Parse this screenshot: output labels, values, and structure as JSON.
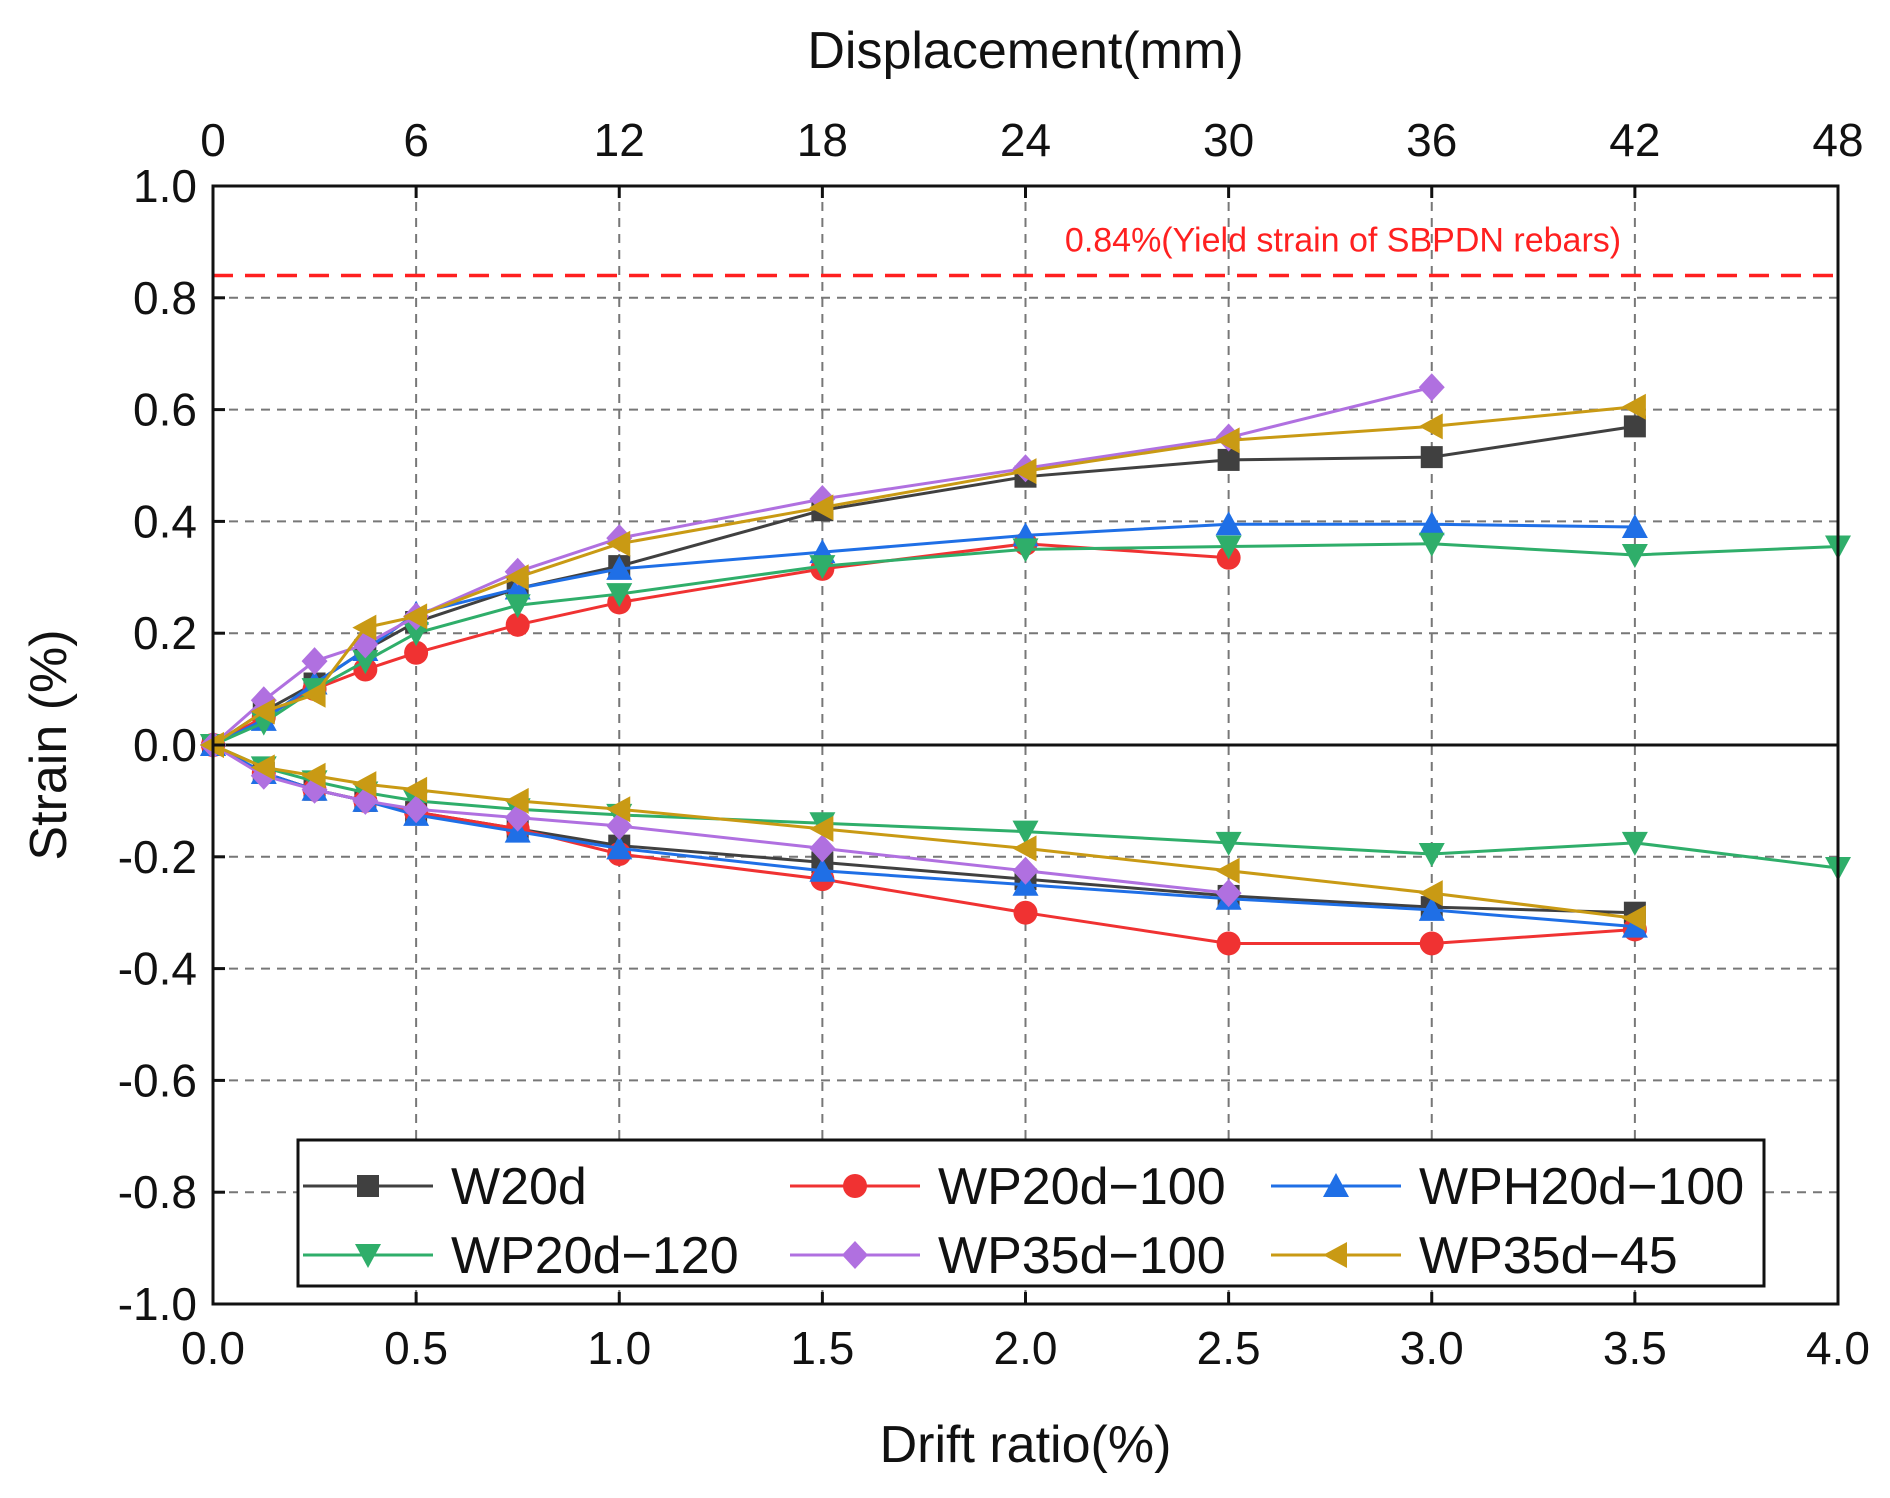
{
  "chart_data": {
    "type": "line",
    "xlabel": "Drift ratio(%)",
    "ylabel": "Strain (%)",
    "x2label": "Displacement(mm)",
    "xlim": [
      0,
      4.0
    ],
    "ylim": [
      -1.0,
      1.0
    ],
    "x2lim": [
      0,
      48
    ],
    "xticks": [
      "0.0",
      "0.5",
      "1.0",
      "1.5",
      "2.0",
      "2.5",
      "3.0",
      "3.5",
      "4.0"
    ],
    "yticks": [
      "1.0",
      "0.8",
      "0.6",
      "0.4",
      "0.2",
      "0.0",
      "-0.2",
      "-0.4",
      "-0.6",
      "-0.8",
      "-1.0"
    ],
    "x2ticks": [
      "0",
      "6",
      "12",
      "18",
      "24",
      "30",
      "36",
      "42",
      "48"
    ],
    "grid": true,
    "legend_position": "bottom",
    "reference_line": {
      "y": 0.84,
      "label": "0.84%(Yield strain of SBPDN rebars)",
      "color": "#ff2020"
    },
    "series": [
      {
        "name": "W20d",
        "color": "#404040",
        "marker": "square",
        "positive": [
          [
            0,
            0
          ],
          [
            0.125,
            0.06
          ],
          [
            0.25,
            0.11
          ],
          [
            0.375,
            0.17
          ],
          [
            0.5,
            0.22
          ],
          [
            0.75,
            0.28
          ],
          [
            1.0,
            0.32
          ],
          [
            1.5,
            0.42
          ],
          [
            2.0,
            0.48
          ],
          [
            2.5,
            0.51
          ],
          [
            3.0,
            0.515
          ],
          [
            3.5,
            0.57
          ]
        ],
        "negative": [
          [
            0,
            0
          ],
          [
            0.125,
            -0.05
          ],
          [
            0.25,
            -0.08
          ],
          [
            0.375,
            -0.1
          ],
          [
            0.5,
            -0.12
          ],
          [
            0.75,
            -0.15
          ],
          [
            1.0,
            -0.18
          ],
          [
            1.5,
            -0.21
          ],
          [
            2.0,
            -0.24
          ],
          [
            2.5,
            -0.27
          ],
          [
            3.0,
            -0.29
          ],
          [
            3.5,
            -0.3
          ]
        ]
      },
      {
        "name": "WP20d−100",
        "color": "#f03232",
        "marker": "circle",
        "positive": [
          [
            0,
            0
          ],
          [
            0.125,
            0.05
          ],
          [
            0.25,
            0.1
          ],
          [
            0.375,
            0.135
          ],
          [
            0.5,
            0.165
          ],
          [
            0.75,
            0.215
          ],
          [
            1.0,
            0.255
          ],
          [
            1.5,
            0.315
          ],
          [
            2.0,
            0.36
          ],
          [
            2.5,
            0.335
          ]
        ],
        "negative": [
          [
            0,
            0
          ],
          [
            0.125,
            -0.05
          ],
          [
            0.25,
            -0.08
          ],
          [
            0.375,
            -0.1
          ],
          [
            0.5,
            -0.12
          ],
          [
            0.75,
            -0.15
          ],
          [
            1.0,
            -0.195
          ],
          [
            1.5,
            -0.24
          ],
          [
            2.0,
            -0.3
          ],
          [
            2.5,
            -0.355
          ],
          [
            3.0,
            -0.355
          ],
          [
            3.5,
            -0.33
          ]
        ]
      },
      {
        "name": "WPH20d−100",
        "color": "#1f6fe6",
        "marker": "triangle-up",
        "positive": [
          [
            0,
            0
          ],
          [
            0.125,
            0.045
          ],
          [
            0.25,
            0.11
          ],
          [
            0.375,
            0.17
          ],
          [
            0.5,
            0.235
          ],
          [
            0.75,
            0.28
          ],
          [
            1.0,
            0.315
          ],
          [
            1.5,
            0.345
          ],
          [
            2.0,
            0.375
          ],
          [
            2.5,
            0.395
          ],
          [
            3.0,
            0.395
          ],
          [
            3.5,
            0.39
          ]
        ],
        "negative": [
          [
            0,
            0
          ],
          [
            0.125,
            -0.05
          ],
          [
            0.25,
            -0.08
          ],
          [
            0.375,
            -0.1
          ],
          [
            0.5,
            -0.125
          ],
          [
            0.75,
            -0.155
          ],
          [
            1.0,
            -0.185
          ],
          [
            1.5,
            -0.225
          ],
          [
            2.0,
            -0.25
          ],
          [
            2.5,
            -0.275
          ],
          [
            3.0,
            -0.295
          ],
          [
            3.5,
            -0.325
          ]
        ]
      },
      {
        "name": "WP20d−120",
        "color": "#2fae6a",
        "marker": "triangle-down",
        "positive": [
          [
            0,
            0
          ],
          [
            0.125,
            0.04
          ],
          [
            0.25,
            0.1
          ],
          [
            0.375,
            0.15
          ],
          [
            0.5,
            0.2
          ],
          [
            0.75,
            0.25
          ],
          [
            1.0,
            0.27
          ],
          [
            1.5,
            0.32
          ],
          [
            2.0,
            0.35
          ],
          [
            2.5,
            0.355
          ],
          [
            3.0,
            0.36
          ],
          [
            3.5,
            0.34
          ],
          [
            4.0,
            0.355
          ]
        ],
        "negative": [
          [
            0,
            0
          ],
          [
            0.125,
            -0.04
          ],
          [
            0.25,
            -0.065
          ],
          [
            0.375,
            -0.085
          ],
          [
            0.5,
            -0.1
          ],
          [
            0.75,
            -0.115
          ],
          [
            1.0,
            -0.125
          ],
          [
            1.5,
            -0.14
          ],
          [
            2.0,
            -0.155
          ],
          [
            2.5,
            -0.175
          ],
          [
            3.0,
            -0.195
          ],
          [
            3.5,
            -0.175
          ],
          [
            4.0,
            -0.22
          ]
        ]
      },
      {
        "name": "WP35d−100",
        "color": "#b070e0",
        "marker": "diamond",
        "positive": [
          [
            0,
            0
          ],
          [
            0.125,
            0.08
          ],
          [
            0.25,
            0.15
          ],
          [
            0.375,
            0.18
          ],
          [
            0.5,
            0.23
          ],
          [
            0.75,
            0.31
          ],
          [
            1.0,
            0.37
          ],
          [
            1.5,
            0.44
          ],
          [
            2.0,
            0.495
          ],
          [
            2.5,
            0.55
          ],
          [
            3.0,
            0.64
          ]
        ],
        "negative": [
          [
            0,
            0
          ],
          [
            0.125,
            -0.055
          ],
          [
            0.25,
            -0.08
          ],
          [
            0.375,
            -0.1
          ],
          [
            0.5,
            -0.115
          ],
          [
            0.75,
            -0.13
          ],
          [
            1.0,
            -0.145
          ],
          [
            1.5,
            -0.185
          ],
          [
            2.0,
            -0.225
          ],
          [
            2.5,
            -0.265
          ]
        ]
      },
      {
        "name": "WP35d−45",
        "color": "#c99a14",
        "marker": "triangle-left",
        "positive": [
          [
            0,
            0
          ],
          [
            0.125,
            0.06
          ],
          [
            0.25,
            0.09
          ],
          [
            0.375,
            0.21
          ],
          [
            0.5,
            0.23
          ],
          [
            0.75,
            0.3
          ],
          [
            1.0,
            0.36
          ],
          [
            1.5,
            0.425
          ],
          [
            2.0,
            0.49
          ],
          [
            2.5,
            0.545
          ],
          [
            3.0,
            0.57
          ],
          [
            3.5,
            0.605
          ]
        ],
        "negative": [
          [
            0,
            0
          ],
          [
            0.125,
            -0.04
          ],
          [
            0.25,
            -0.055
          ],
          [
            0.375,
            -0.07
          ],
          [
            0.5,
            -0.08
          ],
          [
            0.75,
            -0.1
          ],
          [
            1.0,
            -0.115
          ],
          [
            1.5,
            -0.15
          ],
          [
            2.0,
            -0.185
          ],
          [
            2.5,
            -0.225
          ],
          [
            3.0,
            -0.265
          ],
          [
            3.5,
            -0.31
          ]
        ]
      }
    ]
  }
}
